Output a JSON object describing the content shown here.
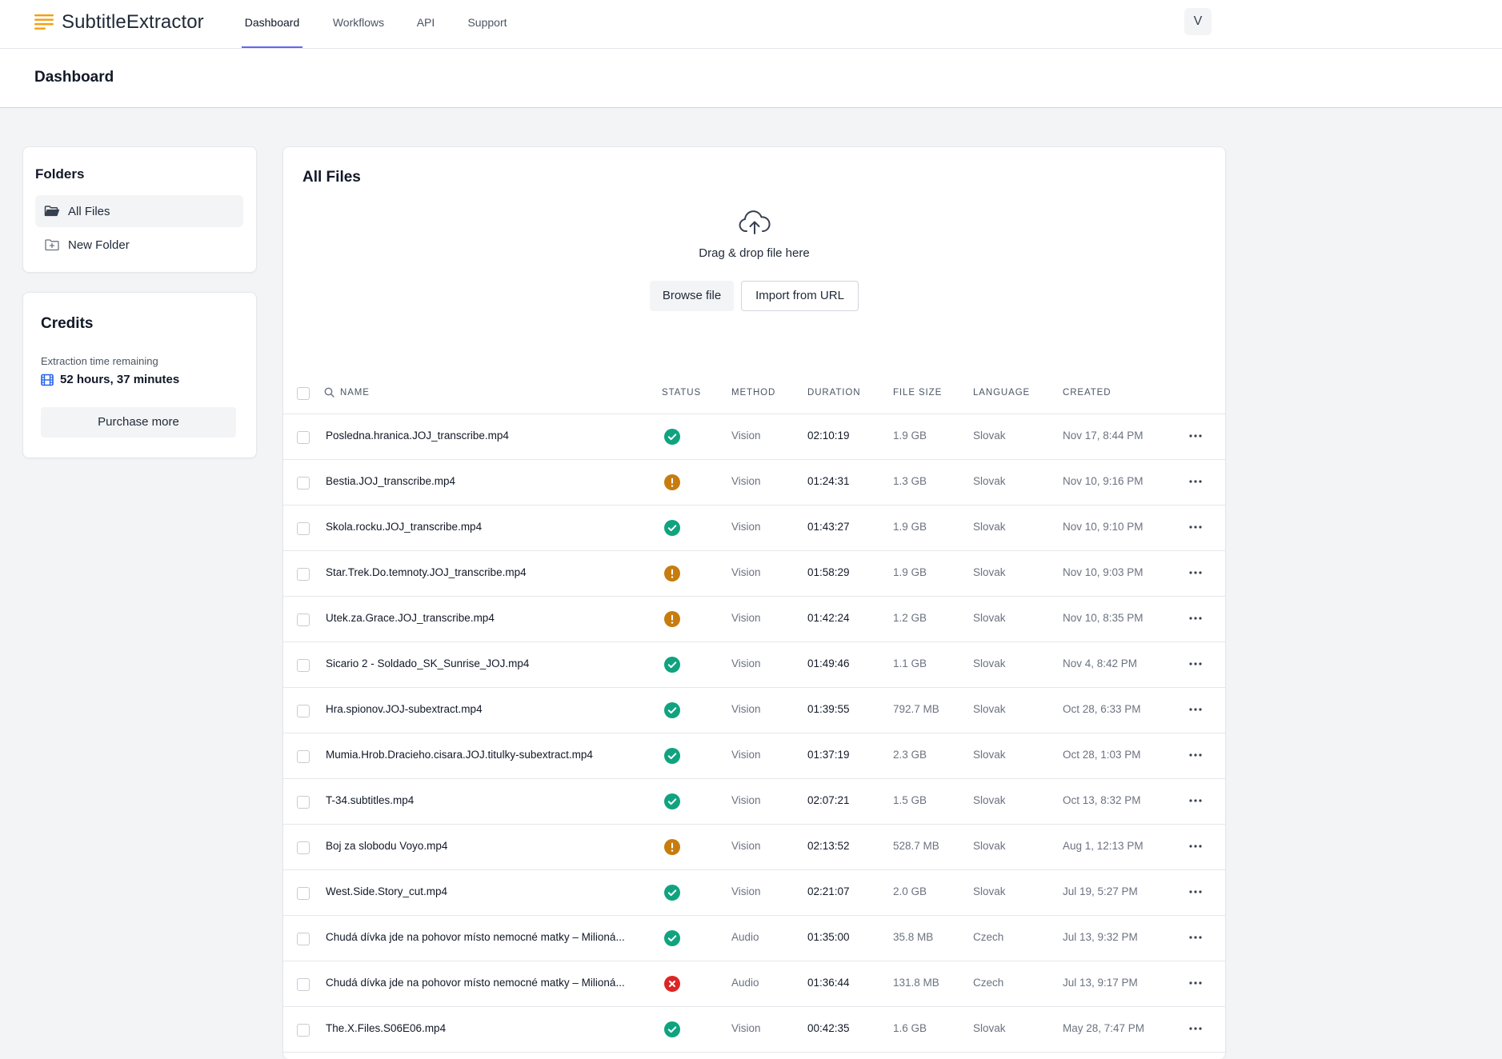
{
  "app": {
    "brand": "SubtitleExtractor",
    "nav": [
      {
        "label": "Dashboard",
        "active": true
      },
      {
        "label": "Workflows",
        "active": false
      },
      {
        "label": "API",
        "active": false
      },
      {
        "label": "Support",
        "active": false
      }
    ],
    "avatar_initial": "V"
  },
  "page": {
    "title": "Dashboard"
  },
  "folders": {
    "title": "Folders",
    "items": [
      {
        "label": "All Files",
        "icon": "folder-open-icon",
        "active": true
      },
      {
        "label": "New Folder",
        "icon": "folder-plus-icon",
        "active": false
      }
    ]
  },
  "credits": {
    "title": "Credits",
    "label": "Extraction time remaining",
    "value": "52 hours, 37 minutes",
    "button": "Purchase more"
  },
  "files": {
    "title": "All Files",
    "drop_text": "Drag & drop file here",
    "browse_label": "Browse file",
    "import_label": "Import from URL",
    "columns": [
      "Name",
      "Status",
      "Method",
      "Duration",
      "File Size",
      "Language",
      "Created"
    ],
    "rows": [
      {
        "name": "Posledna.hranica.JOJ_transcribe.mp4",
        "status": "success",
        "method": "Vision",
        "duration": "02:10:19",
        "size": "1.9 GB",
        "language": "Slovak",
        "created": "Nov 17, 8:44 PM"
      },
      {
        "name": "Bestia.JOJ_transcribe.mp4",
        "status": "warning",
        "method": "Vision",
        "duration": "01:24:31",
        "size": "1.3 GB",
        "language": "Slovak",
        "created": "Nov 10, 9:16 PM"
      },
      {
        "name": "Skola.rocku.JOJ_transcribe.mp4",
        "status": "success",
        "method": "Vision",
        "duration": "01:43:27",
        "size": "1.9 GB",
        "language": "Slovak",
        "created": "Nov 10, 9:10 PM"
      },
      {
        "name": "Star.Trek.Do.temnoty.JOJ_transcribe.mp4",
        "status": "warning",
        "method": "Vision",
        "duration": "01:58:29",
        "size": "1.9 GB",
        "language": "Slovak",
        "created": "Nov 10, 9:03 PM"
      },
      {
        "name": "Utek.za.Grace.JOJ_transcribe.mp4",
        "status": "warning",
        "method": "Vision",
        "duration": "01:42:24",
        "size": "1.2 GB",
        "language": "Slovak",
        "created": "Nov 10, 8:35 PM"
      },
      {
        "name": "Sicario 2 - Soldado_SK_Sunrise_JOJ.mp4",
        "status": "success",
        "method": "Vision",
        "duration": "01:49:46",
        "size": "1.1 GB",
        "language": "Slovak",
        "created": "Nov 4, 8:42 PM"
      },
      {
        "name": "Hra.spionov.JOJ-subextract.mp4",
        "status": "success",
        "method": "Vision",
        "duration": "01:39:55",
        "size": "792.7 MB",
        "language": "Slovak",
        "created": "Oct 28, 6:33 PM"
      },
      {
        "name": "Mumia.Hrob.Dracieho.cisara.JOJ.titulky-subextract.mp4",
        "status": "success",
        "method": "Vision",
        "duration": "01:37:19",
        "size": "2.3 GB",
        "language": "Slovak",
        "created": "Oct 28, 1:03 PM"
      },
      {
        "name": "T-34.subtitles.mp4",
        "status": "success",
        "method": "Vision",
        "duration": "02:07:21",
        "size": "1.5 GB",
        "language": "Slovak",
        "created": "Oct 13, 8:32 PM"
      },
      {
        "name": "Boj za slobodu Voyo.mp4",
        "status": "warning",
        "method": "Vision",
        "duration": "02:13:52",
        "size": "528.7 MB",
        "language": "Slovak",
        "created": "Aug 1, 12:13 PM"
      },
      {
        "name": "West.Side.Story_cut.mp4",
        "status": "success",
        "method": "Vision",
        "duration": "02:21:07",
        "size": "2.0 GB",
        "language": "Slovak",
        "created": "Jul 19, 5:27 PM"
      },
      {
        "name": "Chudá dívka jde na pohovor místo nemocné matky – Milioná...",
        "status": "success",
        "method": "Audio",
        "duration": "01:35:00",
        "size": "35.8 MB",
        "language": "Czech",
        "created": "Jul 13, 9:32 PM"
      },
      {
        "name": "Chudá dívka jde na pohovor místo nemocné matky – Milioná...",
        "status": "error",
        "method": "Audio",
        "duration": "01:36:44",
        "size": "131.8 MB",
        "language": "Czech",
        "created": "Jul 13, 9:17 PM"
      },
      {
        "name": "The.X.Files.S06E06.mp4",
        "status": "success",
        "method": "Vision",
        "duration": "00:42:35",
        "size": "1.6 GB",
        "language": "Slovak",
        "created": "May 28, 7:47 PM"
      }
    ]
  },
  "colors": {
    "accent": "#6366f1",
    "brand_orange": "#f59e0b",
    "success": "#10a37f",
    "warning": "#c77c0e",
    "error": "#dc2626",
    "film_icon": "#2563eb"
  }
}
